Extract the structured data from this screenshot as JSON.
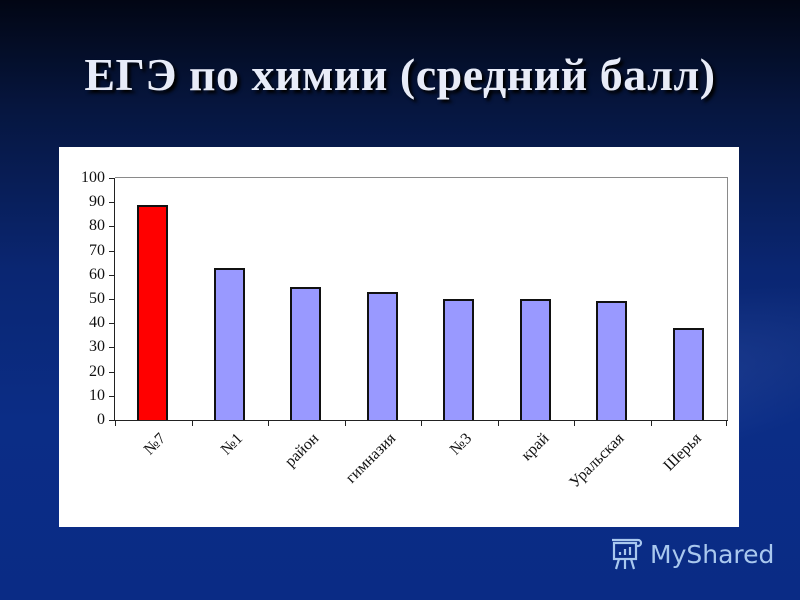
{
  "slide": {
    "title": "ЕГЭ по химии (средний балл)",
    "background_color": "#0a2b85",
    "watermark": {
      "icon": "presentation-board-icon",
      "text": "MyShared"
    }
  },
  "chart_data": {
    "type": "bar",
    "title": "ЕГЭ по химии (средний балл)",
    "categories": [
      "№7",
      "№1",
      "район",
      "гимназия",
      "№3",
      "край",
      "Уральская",
      "Шерья"
    ],
    "values": [
      89,
      63,
      55,
      53,
      50,
      50,
      49,
      38
    ],
    "colors": [
      "#ff0000",
      "#9999ff",
      "#9999ff",
      "#9999ff",
      "#9999ff",
      "#9999ff",
      "#9999ff",
      "#9999ff"
    ],
    "xlabel": "",
    "ylabel": "",
    "ylim": [
      0,
      100
    ],
    "yticks": [
      0,
      10,
      20,
      30,
      40,
      50,
      60,
      70,
      80,
      90,
      100
    ],
    "grid": false,
    "legend": "none",
    "x_label_rotation": -45
  }
}
